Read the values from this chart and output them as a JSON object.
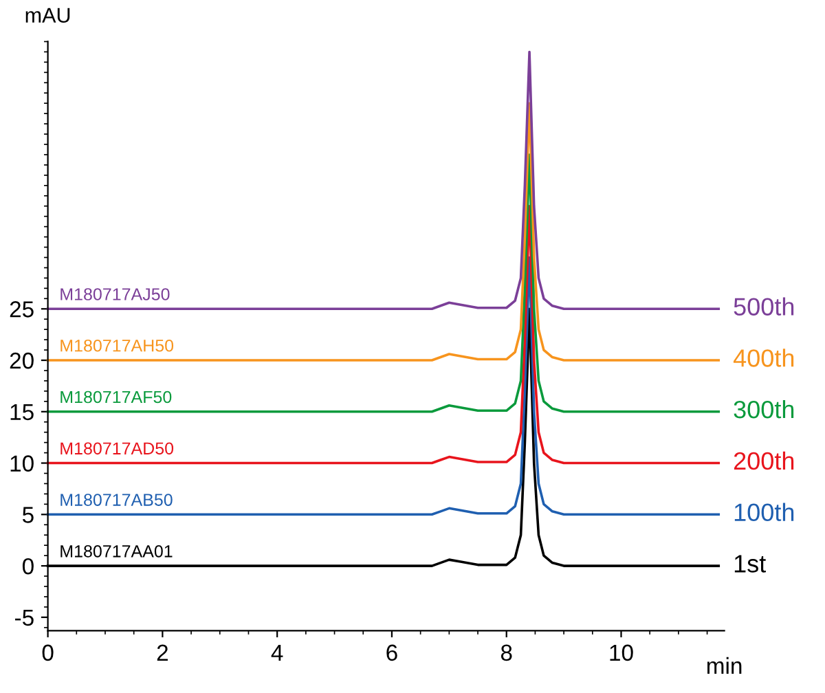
{
  "chart_data": {
    "type": "line",
    "xlabel": "min",
    "ylabel": "mAU",
    "xlim": [
      0,
      11.8
    ],
    "ylim": [
      -6.3,
      51
    ],
    "xticks": [
      0,
      2,
      4,
      6,
      8,
      10
    ],
    "yticks": [
      -5,
      0,
      5,
      10,
      15,
      20,
      25
    ],
    "grid": false,
    "legend": false,
    "marker": "none",
    "line_style": "solid",
    "x": [
      0,
      6.7,
      6.85,
      7.0,
      7.2,
      7.5,
      8.0,
      8.15,
      8.25,
      8.32,
      8.4,
      8.48,
      8.56,
      8.65,
      8.8,
      9.0,
      11.7
    ],
    "series": [
      {
        "name": "1st",
        "color": "#000000",
        "values": [
          0,
          0,
          0.3,
          0.6,
          0.4,
          0.1,
          0.1,
          0.8,
          3,
          12,
          25,
          10,
          3,
          1,
          0.3,
          0,
          0
        ]
      },
      {
        "name": "100th",
        "color": "#1f5fb0",
        "values": [
          5,
          5,
          5.3,
          5.6,
          5.4,
          5.1,
          5.1,
          5.8,
          8,
          17,
          30,
          15,
          8,
          6,
          5.3,
          5,
          5
        ]
      },
      {
        "name": "200th",
        "color": "#e8141c",
        "values": [
          10,
          10,
          10.3,
          10.6,
          10.4,
          10.1,
          10.1,
          10.8,
          13,
          22,
          35,
          20,
          13,
          11,
          10.3,
          10,
          10
        ]
      },
      {
        "name": "300th",
        "color": "#0a9a3c",
        "values": [
          15,
          15,
          15.3,
          15.6,
          15.4,
          15.1,
          15.1,
          15.8,
          18,
          27,
          40,
          25,
          18,
          16,
          15.3,
          15,
          15
        ]
      },
      {
        "name": "400th",
        "color": "#f7941d",
        "values": [
          20,
          20,
          20.3,
          20.6,
          20.4,
          20.1,
          20.1,
          20.8,
          23,
          32,
          45,
          30,
          23,
          21,
          20.3,
          20,
          20
        ]
      },
      {
        "name": "500th",
        "color": "#7b3f98",
        "values": [
          25,
          25,
          25.3,
          25.6,
          25.4,
          25.1,
          25.1,
          25.8,
          28,
          37,
          50,
          35,
          28,
          26,
          25.3,
          25,
          25
        ]
      }
    ],
    "annotations": [
      "M180717AA01",
      "M180717AB50",
      "M180717AD50",
      "M180717AF50",
      "M180717AH50",
      "M180717AJ50"
    ]
  }
}
